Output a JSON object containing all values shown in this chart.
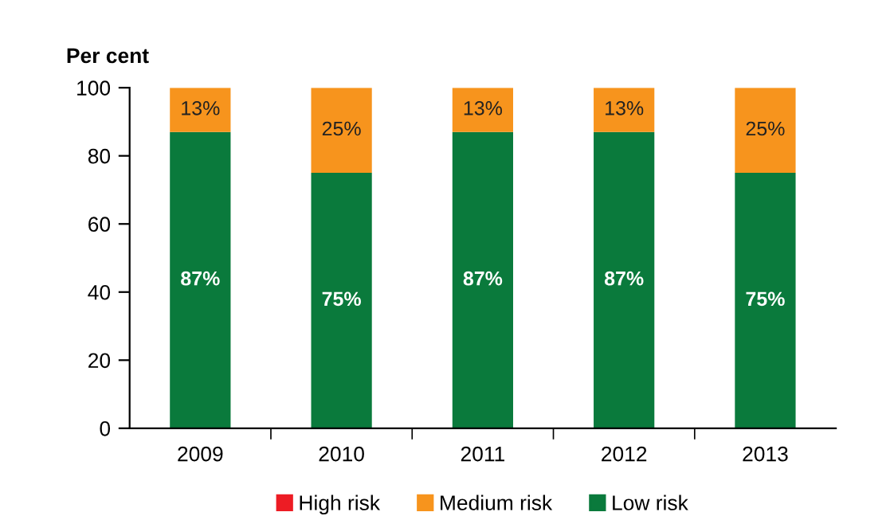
{
  "chart_data": {
    "type": "bar",
    "stacked": true,
    "ylabel": "Per cent",
    "categories": [
      "2009",
      "2010",
      "2011",
      "2012",
      "2013"
    ],
    "series": [
      {
        "name": "Low risk",
        "color": "#0a7a3c",
        "values": [
          87,
          75,
          87,
          87,
          75
        ],
        "value_labels": [
          "87%",
          "75%",
          "87%",
          "87%",
          "75%"
        ]
      },
      {
        "name": "Medium risk",
        "color": "#f7941d",
        "values": [
          13,
          25,
          13,
          13,
          25
        ],
        "value_labels": [
          "13%",
          "25%",
          "13%",
          "13%",
          "25%"
        ]
      },
      {
        "name": "High risk",
        "color": "#ed1c24",
        "values": [
          0,
          0,
          0,
          0,
          0
        ]
      }
    ],
    "ylim": [
      0,
      100
    ],
    "yticks": [
      0,
      20,
      40,
      60,
      80,
      100
    ],
    "legend": "bottom"
  }
}
